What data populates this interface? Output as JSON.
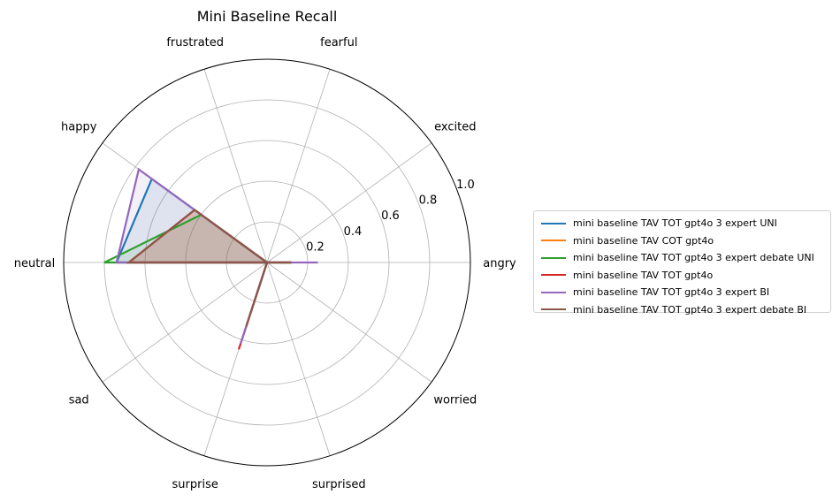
{
  "chart_data": {
    "type": "radar",
    "title": "Mini Baseline Recall",
    "categories": [
      "angry",
      "excited",
      "fearful",
      "frustrated",
      "happy",
      "neutral",
      "sad",
      "surprise",
      "surprised",
      "worried"
    ],
    "r_ticks": [
      "0.2",
      "0.4",
      "0.6",
      "0.8",
      "1.0"
    ],
    "rlim": [
      0,
      1.0
    ],
    "grid": true,
    "legend_position": "right",
    "series": [
      {
        "name": "mini baseline TAV TOT gpt4o 3 expert UNI",
        "color": "#1f77b4",
        "values": [
          0.12,
          0.0,
          0.0,
          0.0,
          0.7,
          0.74,
          0.0,
          0.36,
          0.0,
          0.0
        ]
      },
      {
        "name": "mini baseline TAV COT gpt4o",
        "color": "#ff7f0e",
        "values": [
          0.12,
          0.0,
          0.0,
          0.0,
          0.44,
          0.68,
          0.0,
          0.33,
          0.0,
          0.0
        ]
      },
      {
        "name": "mini baseline TAV TOT gpt4o 3 expert debate UNI",
        "color": "#2ca02c",
        "values": [
          0.12,
          0.0,
          0.0,
          0.0,
          0.4,
          0.8,
          0.0,
          0.33,
          0.0,
          0.0
        ]
      },
      {
        "name": "mini baseline TAV TOT gpt4o",
        "color": "#d62728",
        "values": [
          0.12,
          0.0,
          0.0,
          0.0,
          0.44,
          0.68,
          0.0,
          0.45,
          0.0,
          0.0
        ]
      },
      {
        "name": "mini baseline TAV TOT gpt4o 3 expert BI",
        "color": "#9467bd",
        "values": [
          0.25,
          0.0,
          0.0,
          0.0,
          0.78,
          0.74,
          0.0,
          0.42,
          0.0,
          0.0
        ]
      },
      {
        "name": "mini baseline TAV TOT gpt4o 3 expert debate BI",
        "color": "#8c564b",
        "values": [
          0.12,
          0.0,
          0.0,
          0.0,
          0.44,
          0.68,
          0.0,
          0.33,
          0.0,
          0.0
        ]
      }
    ]
  }
}
